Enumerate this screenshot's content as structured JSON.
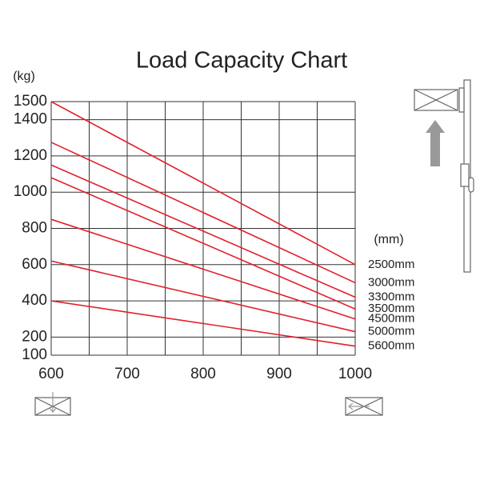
{
  "chart_data": {
    "type": "line",
    "title": "Load Capacity Chart",
    "y_label": "(kg)",
    "legend_title": "(mm)",
    "x": [
      600,
      1000
    ],
    "series": [
      {
        "name": "2500mm",
        "color": "#e3202c",
        "values": [
          1500,
          600
        ]
      },
      {
        "name": "3000mm",
        "color": "#e3202c",
        "values": [
          1275,
          500
        ]
      },
      {
        "name": "3300mm",
        "color": "#e3202c",
        "values": [
          1150,
          420
        ]
      },
      {
        "name": "3500mm",
        "color": "#e3202c",
        "values": [
          1080,
          355
        ]
      },
      {
        "name": "4500mm",
        "color": "#e3202c",
        "values": [
          850,
          300
        ]
      },
      {
        "name": "5000mm",
        "color": "#e3202c",
        "values": [
          620,
          230
        ]
      },
      {
        "name": "5600mm",
        "color": "#e3202c",
        "values": [
          400,
          150
        ]
      }
    ],
    "xlim": [
      600,
      1000
    ],
    "xticks": [
      600,
      700,
      800,
      900,
      1000
    ],
    "xgrid": [
      650,
      750,
      850,
      950
    ],
    "ylim": [
      100,
      1500
    ],
    "yticks": [
      100,
      200,
      400,
      600,
      800,
      1000,
      1200,
      1400,
      1500
    ],
    "grid": true
  }
}
